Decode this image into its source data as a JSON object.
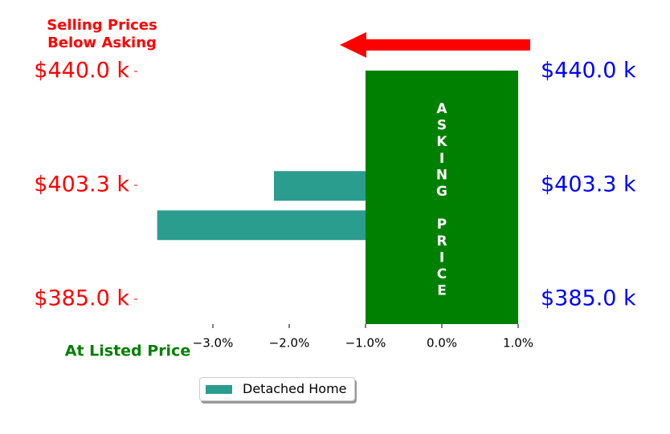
{
  "chart_data": {
    "type": "bar",
    "orientation": "horizontal",
    "annotations": {
      "top_left": [
        "Selling Prices",
        "Below Asking"
      ],
      "bottom_left": "At Listed Price",
      "asking_price_letters": [
        "A",
        "S",
        "K",
        "I",
        "N",
        "G",
        "",
        "P",
        "R",
        "I",
        "C",
        "E"
      ]
    },
    "y_ticks_left": [
      "$440.0 k",
      "$403.3 k",
      "$385.0 k"
    ],
    "y_ticks_right": [
      "$440.0 k",
      "$403.3 k",
      "$385.0 k"
    ],
    "x_ticks": [
      "−3.0%",
      "−2.0%",
      "−1.0%",
      "0.0%",
      "1.0%"
    ],
    "x_tick_values": [
      -3.0,
      -2.0,
      -1.0,
      0.0,
      1.0
    ],
    "xlim": [
      -4.0,
      1.0
    ],
    "asking_band": {
      "from": -1.0,
      "to": 1.0
    },
    "series": [
      {
        "name": "Detached Home",
        "bars": [
          {
            "from": -1.0,
            "to": -2.2,
            "level": 0.455
          },
          {
            "from": -1.0,
            "to": -3.73,
            "level": 0.61
          }
        ]
      }
    ],
    "colors": {
      "bar": "#2a9d8f",
      "asking_band": "#008000",
      "left_ticks": "#ff0000",
      "right_ticks": "#0000ff",
      "top_annotation": "#ff0000",
      "bottom_annotation": "#008000",
      "arrow": "#ff0000",
      "asking_text": "#ffffff"
    },
    "legend": {
      "placement": "bottom-center"
    }
  },
  "legend": {
    "label": "Detached Home"
  }
}
